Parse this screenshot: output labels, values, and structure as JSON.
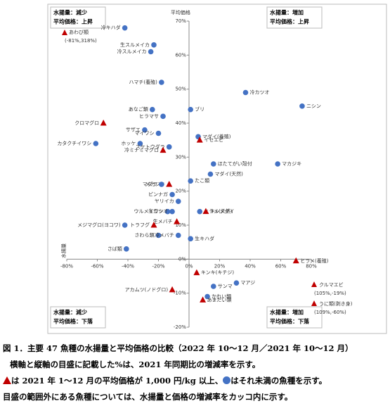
{
  "chart_data": {
    "type": "scatter",
    "x_title": "水揚量",
    "y_title": "平均価格",
    "xlim": [
      -80,
      80
    ],
    "ylim": [
      -20,
      70
    ],
    "xticks": [
      {
        "value": -80,
        "label": "-80%"
      },
      {
        "value": -60,
        "label": "-60%"
      },
      {
        "value": -40,
        "label": "-40%"
      },
      {
        "value": -20,
        "label": "-20%"
      },
      {
        "value": 0,
        "label": "0%"
      },
      {
        "value": 20,
        "label": "20%"
      },
      {
        "value": 40,
        "label": "40%"
      },
      {
        "value": 60,
        "label": "60%"
      },
      {
        "value": 80,
        "label": "80%"
      }
    ],
    "yticks": [
      {
        "value": -20,
        "label": "-20%"
      },
      {
        "value": -10,
        "label": "-10%"
      },
      {
        "value": 0,
        "label": "0%"
      },
      {
        "value": 10,
        "label": "10%"
      },
      {
        "value": 20,
        "label": "20%"
      },
      {
        "value": 30,
        "label": "30%"
      },
      {
        "value": 40,
        "label": "40%"
      },
      {
        "value": 50,
        "label": "50%"
      },
      {
        "value": 60,
        "label": "60%"
      },
      {
        "value": 70,
        "label": "70%"
      }
    ],
    "colors": {
      "circle": "#4472c4",
      "triangle": "#c00000"
    },
    "quadrants": [
      {
        "line1": "水揚量：減少",
        "line2": "平均価格：上昇"
      },
      {
        "line1": "水揚量：増加",
        "line2": "平均価格：上昇"
      },
      {
        "line1": "水揚量：減少",
        "line2": "平均価格：下落"
      },
      {
        "line1": "水揚量：増加",
        "line2": "平均価格：下落"
      }
    ],
    "points": [
      {
        "label": "冷キハダ",
        "x": -42,
        "y": 68,
        "marker": "circle"
      },
      {
        "label": "生スルメイカ",
        "x": -23,
        "y": 63,
        "marker": "circle"
      },
      {
        "label": "冷スルメイカ",
        "x": -25,
        "y": 61,
        "marker": "circle"
      },
      {
        "label": "ハマチ(養殖)",
        "x": -18,
        "y": 52,
        "marker": "circle"
      },
      {
        "label": "冷カツオ",
        "x": 37,
        "y": 49,
        "marker": "circle"
      },
      {
        "label": "ニシン",
        "x": 74,
        "y": 45,
        "marker": "circle"
      },
      {
        "label": "あなご類",
        "x": -24,
        "y": 44,
        "marker": "circle"
      },
      {
        "label": "ブリ",
        "x": 1,
        "y": 44,
        "marker": "circle"
      },
      {
        "label": "ヒラマサ",
        "x": -17,
        "y": 42,
        "marker": "circle"
      },
      {
        "label": "クロマグロ",
        "x": -56,
        "y": 40,
        "marker": "triangle"
      },
      {
        "label": "サザエ",
        "x": -29,
        "y": 38,
        "marker": "circle"
      },
      {
        "label": "マイワシ",
        "x": -20,
        "y": 37,
        "marker": "circle"
      },
      {
        "label": "マダイ(養殖)",
        "x": 6,
        "y": 36,
        "marker": "circle"
      },
      {
        "label": "イセエビ",
        "x": 7,
        "y": 35,
        "marker": "triangle"
      },
      {
        "label": "カタクチイワシ",
        "x": -61,
        "y": 34,
        "marker": "circle"
      },
      {
        "label": "ホッケ",
        "x": -32,
        "y": 34,
        "marker": "circle"
      },
      {
        "label": "スケトウダラ",
        "x": -13,
        "y": 33,
        "marker": "circle"
      },
      {
        "label": "冷ミナミマグロ",
        "x": -17,
        "y": 32,
        "marker": "triangle"
      },
      {
        "label": "マカジキ",
        "x": 58,
        "y": 28,
        "marker": "circle"
      },
      {
        "label": "ほたてがい殻付",
        "x": 16,
        "y": 28,
        "marker": "circle"
      },
      {
        "label": "マダイ(天然)",
        "x": 14,
        "y": 25,
        "marker": "circle"
      },
      {
        "label": "たこ類",
        "x": 1,
        "y": 23,
        "marker": "circle"
      },
      {
        "label": "メカジキ",
        "x": -13,
        "y": 22,
        "marker": "triangle"
      },
      {
        "label": "マダラ",
        "x": -18,
        "y": 22,
        "marker": "circle"
      },
      {
        "label": "ビンナガ",
        "x": -11,
        "y": 19,
        "marker": "circle"
      },
      {
        "label": "ヤリイカ",
        "x": -7,
        "y": 17,
        "marker": "circle"
      },
      {
        "label": "ウルメイワシ",
        "x": -14,
        "y": 14,
        "marker": "circle"
      },
      {
        "label": "生カツオ",
        "x": -11,
        "y": 14,
        "marker": "circle"
      },
      {
        "label": "ヒラメ(天然)",
        "x": 7,
        "y": 14,
        "marker": "circle"
      },
      {
        "label": "キンメダイ",
        "x": 11,
        "y": 14,
        "marker": "triangle"
      },
      {
        "label": "生メバチ",
        "x": -8,
        "y": 11,
        "marker": "triangle"
      },
      {
        "label": "メジマグロ(ヨコワ)",
        "x": -42,
        "y": 10,
        "marker": "circle"
      },
      {
        "label": "トラフグ",
        "x": -23,
        "y": 10,
        "marker": "triangle"
      },
      {
        "label": "さわら類",
        "x": -20,
        "y": 7,
        "marker": "circle"
      },
      {
        "label": "冷メバチ",
        "x": -7,
        "y": 7,
        "marker": "circle"
      },
      {
        "label": "生キハダ",
        "x": 1,
        "y": 6,
        "marker": "circle"
      },
      {
        "label": "さば類",
        "x": -41,
        "y": 3,
        "marker": "circle"
      },
      {
        "label": "ヒラメ(養殖)",
        "x": 70,
        "y": -0.5,
        "marker": "triangle"
      },
      {
        "label": "キンキ(キチジ)",
        "x": 5,
        "y": -4,
        "marker": "triangle"
      },
      {
        "label": "マアジ",
        "x": 31,
        "y": -7,
        "marker": "circle"
      },
      {
        "label": "サンマ",
        "x": 16,
        "y": -8,
        "marker": "circle"
      },
      {
        "label": "アカムツ(ノドグロ)",
        "x": -11,
        "y": -9,
        "marker": "triangle"
      },
      {
        "label": "かれい類",
        "x": 12,
        "y": -11,
        "marker": "circle"
      },
      {
        "label": "あまだい類",
        "x": 9,
        "y": -12,
        "marker": "triangle"
      }
    ],
    "outliers": [
      {
        "label": "あわび類",
        "note": "(-81%,318%)"
      },
      {
        "label": "クルマエビ",
        "note": "(105%,-19%)"
      },
      {
        "label": "うに類(剥き身)",
        "note": "(109%,-60%)"
      }
    ]
  },
  "caption": {
    "line1": "図 1．主要 47 魚種の水揚量と平均価格の比較（2022 年 10～12 月／2021 年 10～12 月）",
    "line2": "横軸と縦軸の目盛に記載した%は、2021 年同期比の増減率を示す。",
    "line3a": "は 2021 年 1～12 月の平均価格が 1,000 円/kg 以上、",
    "line3b": "はそれ未満の魚種を示す。",
    "line4": "目盛の範囲外にある魚種については、水揚量と価格の増減率をカッコ内に示す。"
  }
}
